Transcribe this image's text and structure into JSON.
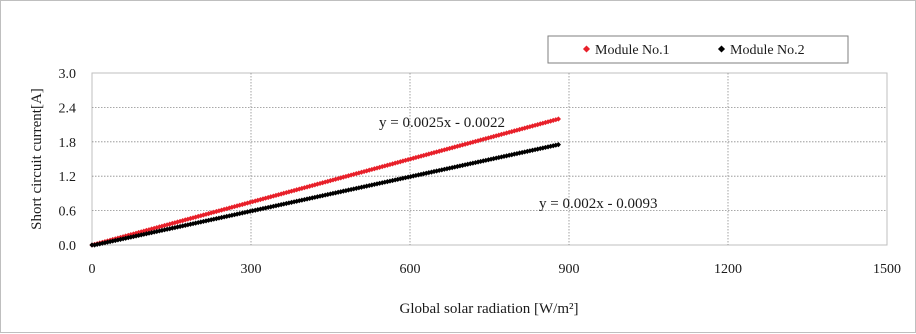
{
  "chart_data": {
    "type": "scatter",
    "title": "",
    "xlabel": "Global solar radiation [W/m²]",
    "ylabel": "Short circuit current[A]",
    "xlim": [
      0,
      1500
    ],
    "ylim": [
      0,
      3.0
    ],
    "x_ticks": [
      0,
      300,
      600,
      900,
      1200,
      1500
    ],
    "y_ticks": [
      0.0,
      0.6,
      1.2,
      1.8,
      2.4,
      3.0
    ],
    "x_tick_labels": [
      "0",
      "300",
      "600",
      "900",
      "1200",
      "1500"
    ],
    "y_tick_labels": [
      "0.0",
      "0.6",
      "1.2",
      "1.8",
      "2.4",
      "3.0"
    ],
    "grid": true,
    "legend_position": "top-right",
    "series": [
      {
        "name": "Module No.1",
        "color": "#e8202a",
        "marker": "diamond",
        "x_range": [
          0,
          880
        ],
        "slope": 0.0025,
        "intercept": -0.0022,
        "trendline_label": "y = 0.0025x - 0.0022"
      },
      {
        "name": "Module No.2",
        "color": "#000000",
        "marker": "diamond",
        "x_range": [
          0,
          880
        ],
        "slope": 0.002,
        "intercept": -0.0093,
        "trendline_label": "y = 0.002x - 0.0093"
      }
    ]
  }
}
